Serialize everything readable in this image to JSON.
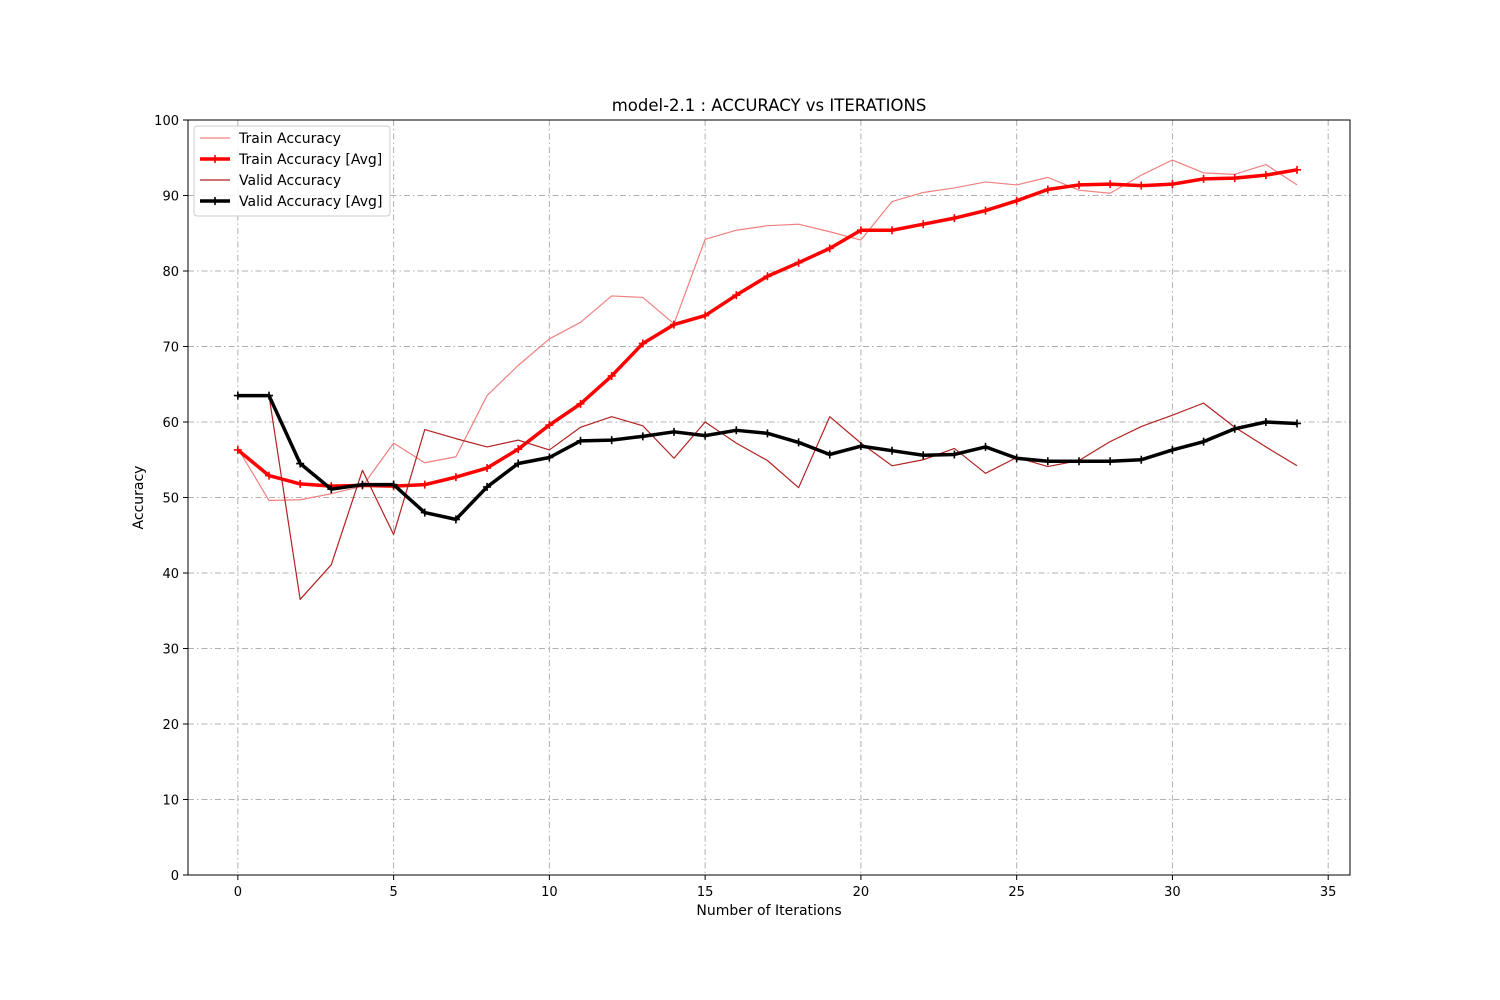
{
  "chart_data": {
    "type": "line",
    "title": "model-2.1 : ACCURACY vs ITERATIONS",
    "xlabel": "Number of Iterations",
    "ylabel": "Accuracy",
    "xlim": [
      -1.6,
      35.7
    ],
    "ylim": [
      0,
      100
    ],
    "xticks": [
      0,
      5,
      10,
      15,
      20,
      25,
      30,
      35
    ],
    "yticks": [
      0,
      10,
      20,
      30,
      40,
      50,
      60,
      70,
      80,
      90,
      100
    ],
    "grid": true,
    "legend_position": "upper-left",
    "x": [
      0,
      1,
      2,
      3,
      4,
      5,
      6,
      7,
      8,
      9,
      10,
      11,
      12,
      13,
      14,
      15,
      16,
      17,
      18,
      19,
      20,
      21,
      22,
      23,
      24,
      25,
      26,
      27,
      28,
      29,
      30,
      31,
      32,
      33,
      34
    ],
    "series": [
      {
        "name": "Train Accuracy",
        "color": "#f08080",
        "line_width": "thin",
        "marker": "none",
        "values": [
          56.5,
          49.6,
          49.7,
          50.5,
          51.5,
          57.2,
          54.6,
          55.4,
          63.5,
          67.5,
          71.0,
          73.2,
          76.7,
          76.5,
          73.0,
          84.2,
          85.4,
          86.0,
          86.2,
          85.2,
          84.1,
          89.2,
          90.4,
          91.0,
          91.8,
          91.4,
          92.4,
          90.7,
          90.3,
          92.7,
          94.7,
          93.0,
          92.8,
          94.1,
          91.4
        ]
      },
      {
        "name": "Train Accuracy [Avg]",
        "color": "#ff0000",
        "line_width": "thick",
        "marker": "plus",
        "values": [
          56.3,
          52.9,
          51.8,
          51.5,
          51.6,
          51.5,
          51.7,
          52.7,
          53.9,
          56.4,
          59.6,
          62.4,
          66.1,
          70.4,
          72.9,
          74.1,
          76.8,
          79.3,
          81.1,
          83.0,
          85.4,
          85.4,
          86.2,
          87.0,
          88.0,
          89.3,
          90.8,
          91.4,
          91.5,
          91.3,
          91.5,
          92.2,
          92.3,
          92.7,
          93.4
        ]
      },
      {
        "name": "Valid Accuracy",
        "color": "#b22222",
        "line_width": "thin",
        "marker": "none",
        "values": [
          63.5,
          63.5,
          36.5,
          41.1,
          53.6,
          45.1,
          59.0,
          57.8,
          56.7,
          57.6,
          56.3,
          59.3,
          60.7,
          59.5,
          55.2,
          60.0,
          57.2,
          54.9,
          51.3,
          60.7,
          57.2,
          54.2,
          55.0,
          56.5,
          53.2,
          55.3,
          54.1,
          54.9,
          57.4,
          59.4,
          60.9,
          62.5,
          59.3,
          56.7,
          54.2
        ]
      },
      {
        "name": "Valid Accuracy [Avg]",
        "color": "#000000",
        "line_width": "thick",
        "marker": "plus",
        "values": [
          63.5,
          63.5,
          54.5,
          51.1,
          51.7,
          51.7,
          48.0,
          47.1,
          51.4,
          54.5,
          55.3,
          57.5,
          57.6,
          58.1,
          58.7,
          58.2,
          58.9,
          58.5,
          57.3,
          55.7,
          56.8,
          56.2,
          55.6,
          55.7,
          56.7,
          55.2,
          54.8,
          54.8,
          54.8,
          55.0,
          56.3,
          57.4,
          59.1,
          60.0,
          59.8
        ]
      }
    ]
  }
}
